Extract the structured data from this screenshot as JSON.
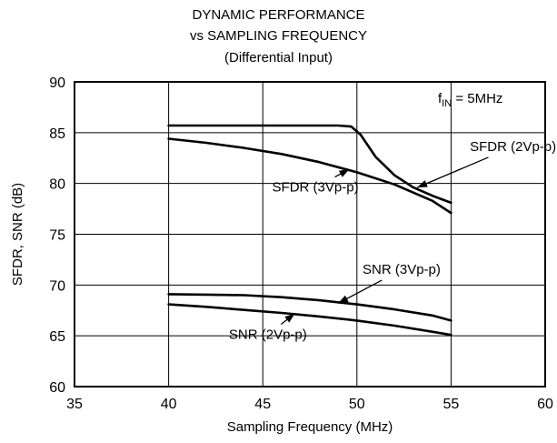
{
  "chart_data": {
    "type": "line",
    "title": [
      "DYNAMIC PERFORMANCE",
      "vs SAMPLING FREQUENCY",
      "(Differential Input)"
    ],
    "xlabel": "Sampling Frequency (MHz)",
    "ylabel": "SFDR, SNR (dB)",
    "xlim": [
      35,
      60
    ],
    "ylim": [
      60,
      90
    ],
    "xticks": [
      35,
      40,
      45,
      50,
      55,
      60
    ],
    "yticks": [
      60,
      65,
      70,
      75,
      80,
      85,
      90
    ],
    "grid": true,
    "condition": {
      "main": "f",
      "sub": "IN",
      "rest": " = 5MHz"
    },
    "series": [
      {
        "name": "SFDR (2Vp-p)",
        "x": [
          40,
          45,
          49,
          49.7,
          50.2,
          51,
          52,
          53,
          54,
          55
        ],
        "y": [
          85.7,
          85.7,
          85.7,
          85.6,
          84.8,
          82.6,
          80.8,
          79.6,
          78.8,
          78.1
        ]
      },
      {
        "name": "SFDR (3Vp-p)",
        "x": [
          40,
          42,
          44,
          46,
          48,
          50,
          52,
          54,
          55
        ],
        "y": [
          84.4,
          84.0,
          83.5,
          82.9,
          82.1,
          81.1,
          79.9,
          78.3,
          77.1
        ]
      },
      {
        "name": "SNR (3Vp-p)",
        "x": [
          40,
          42,
          44,
          46,
          48,
          50,
          52,
          54,
          55
        ],
        "y": [
          69.1,
          69.05,
          69.0,
          68.8,
          68.5,
          68.1,
          67.6,
          67.0,
          66.5
        ]
      },
      {
        "name": "SNR (2Vp-p)",
        "x": [
          40,
          42,
          44,
          46,
          48,
          50,
          52,
          54,
          55
        ],
        "y": [
          68.1,
          67.85,
          67.55,
          67.25,
          66.9,
          66.5,
          66.0,
          65.4,
          65.1
        ]
      }
    ],
    "annotations": [
      {
        "text": "SFDR (2Vp-p)",
        "at": [
          56,
          83.2
        ],
        "arrow_to": [
          53.2,
          79.6
        ]
      },
      {
        "text": "SFDR (3Vp-p)",
        "at": [
          45.5,
          79.2
        ],
        "arrow_to": [
          49.6,
          81.4
        ]
      },
      {
        "text": "SNR (3Vp-p)",
        "at": [
          50.3,
          71.1
        ],
        "arrow_to": [
          49.0,
          68.2
        ]
      },
      {
        "text": "SNR (2Vp-p)",
        "at": [
          43.2,
          64.7
        ],
        "arrow_to": [
          46.7,
          67.2
        ]
      }
    ]
  }
}
